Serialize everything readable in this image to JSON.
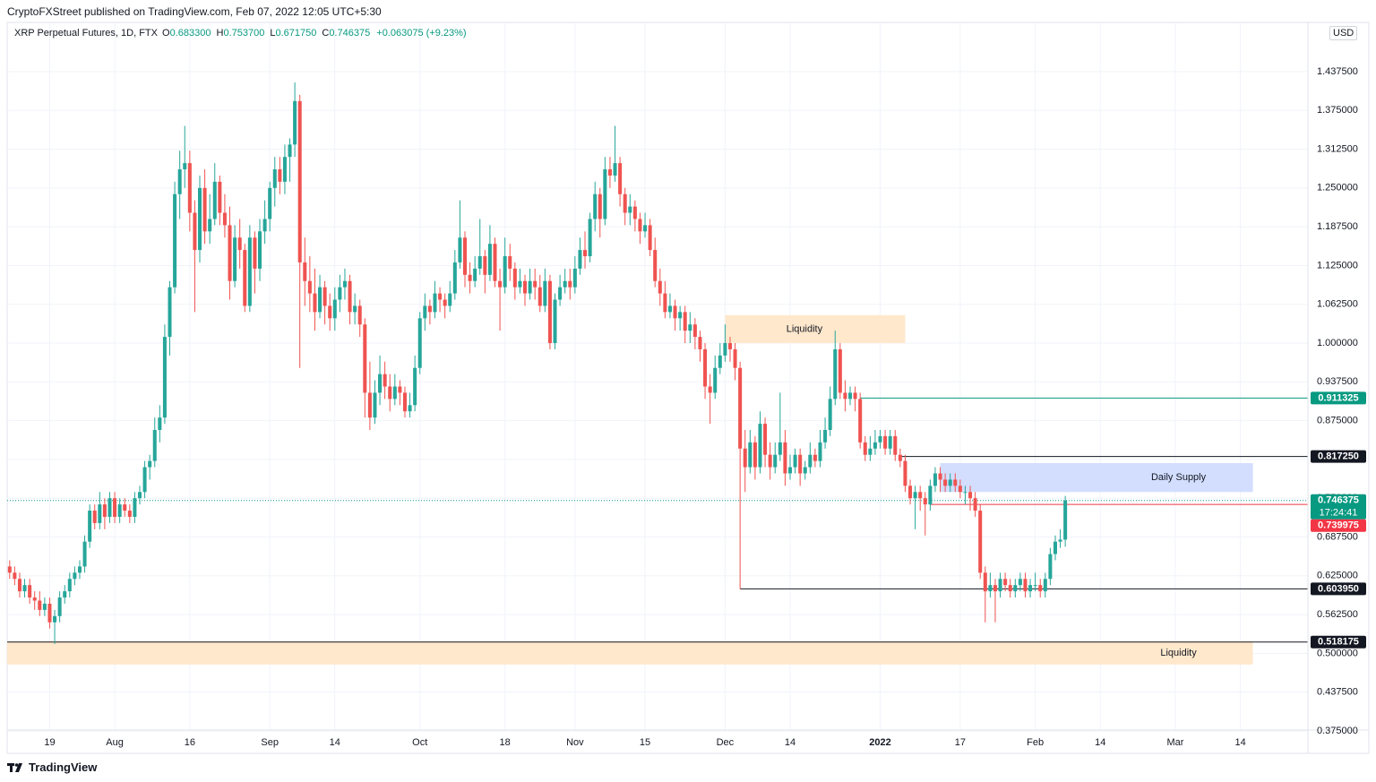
{
  "publish_line": "CryptoFXStreet published on TradingView.com, Feb 07, 2022 12:05 UTC+5:30",
  "header": {
    "symbol": "XRP Perpetual Futures, 1D, FTX",
    "fields": [
      {
        "key": "O",
        "value": "0.683300"
      },
      {
        "key": "H",
        "value": "0.753700"
      },
      {
        "key": "L",
        "value": "0.671750"
      },
      {
        "key": "C",
        "value": "0.746375"
      }
    ],
    "change": "+0.063075 (+9.23%)"
  },
  "currency": "USD",
  "brand": "TradingView",
  "chart_data": {
    "type": "candlestick",
    "up_color": "#26a69a",
    "down_color": "#ef5350",
    "grid": true,
    "xlim": [
      -0.5,
      259.5
    ],
    "xticks": [
      {
        "value": 8,
        "label": "19"
      },
      {
        "value": 21,
        "label": "Aug"
      },
      {
        "value": 36,
        "label": "16"
      },
      {
        "value": 52,
        "label": "Sep"
      },
      {
        "value": 65,
        "label": "14"
      },
      {
        "value": 82,
        "label": "Oct"
      },
      {
        "value": 99,
        "label": "18"
      },
      {
        "value": 113,
        "label": "Nov"
      },
      {
        "value": 127,
        "label": "15"
      },
      {
        "value": 143,
        "label": "Dec"
      },
      {
        "value": 156,
        "label": "14"
      },
      {
        "value": 174,
        "label": "2022"
      },
      {
        "value": 190,
        "label": "17"
      },
      {
        "value": 205,
        "label": "Feb"
      },
      {
        "value": 218,
        "label": "14"
      },
      {
        "value": 233,
        "label": "Mar"
      },
      {
        "value": 246,
        "label": "14"
      }
    ],
    "ylim": [
      0.3764,
      1.5168
    ],
    "yticks": [
      {
        "value": 0.375,
        "label": "0.375000"
      },
      {
        "value": 0.4375,
        "label": "0.437500"
      },
      {
        "value": 0.5,
        "label": "0.500000"
      },
      {
        "value": 0.5625,
        "label": "0.562500"
      },
      {
        "value": 0.625,
        "label": "0.625000"
      },
      {
        "value": 0.6875,
        "label": "0.687500"
      },
      {
        "value": 0.75,
        "label": "0.750000"
      },
      {
        "value": 0.8125,
        "label": "0.812500"
      },
      {
        "value": 0.875,
        "label": "0.875000"
      },
      {
        "value": 0.9375,
        "label": "0.937500"
      },
      {
        "value": 1.0,
        "label": "1.000000"
      },
      {
        "value": 1.0625,
        "label": "1.062500"
      },
      {
        "value": 1.125,
        "label": "1.125000"
      },
      {
        "value": 1.1875,
        "label": "1.187500"
      },
      {
        "value": 1.25,
        "label": "1.250000"
      },
      {
        "value": 1.3125,
        "label": "1.312500"
      },
      {
        "value": 1.375,
        "label": "1.375000"
      },
      {
        "value": 1.4375,
        "label": "1.437500"
      }
    ],
    "zones": [
      {
        "label": "Liquidity",
        "top": 1.045,
        "bottom": 1.0,
        "start": 143,
        "end": 179,
        "color": "#ffe8cc"
      },
      {
        "label": "Daily Supply",
        "top": 0.8066,
        "bottom": 0.76,
        "start": 186,
        "end": 248.5,
        "color": "#d3deff"
      },
      {
        "label": "Liquidity",
        "top": 0.5195,
        "bottom": 0.482,
        "start": -0.5,
        "end": 248.5,
        "color": "#ffe8cc"
      }
    ],
    "levels": [
      {
        "value": 0.911325,
        "label": "0.911325",
        "color": "#089981",
        "start": 170
      },
      {
        "value": 0.81725,
        "label": "0.817250",
        "color": "#131722",
        "start": 178
      },
      {
        "value": 0.739975,
        "label": "0.739975",
        "color": "#f23645",
        "start": 184
      },
      {
        "value": 0.60395,
        "label": "0.603950",
        "color": "#131722",
        "start": 146
      },
      {
        "value": 0.518175,
        "label": "0.518175",
        "color": "#131722",
        "start": -0.5
      }
    ],
    "last": {
      "value": 0.746375,
      "label": "0.746375",
      "countdown": "17:24:41",
      "color": "#089981"
    },
    "candles": [
      [
        0.64,
        0.65,
        0.62,
        0.63
      ],
      [
        0.63,
        0.64,
        0.61,
        0.62
      ],
      [
        0.62,
        0.63,
        0.59,
        0.6
      ],
      [
        0.6,
        0.62,
        0.59,
        0.61
      ],
      [
        0.61,
        0.62,
        0.58,
        0.59
      ],
      [
        0.59,
        0.6,
        0.57,
        0.585
      ],
      [
        0.585,
        0.6,
        0.56,
        0.57
      ],
      [
        0.57,
        0.59,
        0.56,
        0.58
      ],
      [
        0.58,
        0.59,
        0.54,
        0.55
      ],
      [
        0.55,
        0.57,
        0.515,
        0.56
      ],
      [
        0.56,
        0.6,
        0.55,
        0.59
      ],
      [
        0.59,
        0.61,
        0.58,
        0.6
      ],
      [
        0.6,
        0.63,
        0.59,
        0.62
      ],
      [
        0.62,
        0.64,
        0.61,
        0.63
      ],
      [
        0.63,
        0.65,
        0.62,
        0.64
      ],
      [
        0.64,
        0.69,
        0.63,
        0.68
      ],
      [
        0.68,
        0.74,
        0.67,
        0.73
      ],
      [
        0.73,
        0.74,
        0.7,
        0.71
      ],
      [
        0.71,
        0.76,
        0.7,
        0.74
      ],
      [
        0.74,
        0.75,
        0.7,
        0.72
      ],
      [
        0.72,
        0.76,
        0.71,
        0.75
      ],
      [
        0.75,
        0.76,
        0.71,
        0.72
      ],
      [
        0.72,
        0.75,
        0.71,
        0.74
      ],
      [
        0.74,
        0.75,
        0.72,
        0.73
      ],
      [
        0.73,
        0.74,
        0.71,
        0.72
      ],
      [
        0.72,
        0.76,
        0.71,
        0.75
      ],
      [
        0.75,
        0.77,
        0.74,
        0.76
      ],
      [
        0.76,
        0.81,
        0.75,
        0.8
      ],
      [
        0.8,
        0.82,
        0.78,
        0.81
      ],
      [
        0.81,
        0.88,
        0.8,
        0.86
      ],
      [
        0.86,
        0.9,
        0.84,
        0.88
      ],
      [
        0.88,
        1.03,
        0.87,
        1.01
      ],
      [
        1.01,
        1.1,
        0.98,
        1.09
      ],
      [
        1.09,
        1.26,
        1.08,
        1.24
      ],
      [
        1.24,
        1.31,
        1.2,
        1.28
      ],
      [
        1.28,
        1.35,
        1.25,
        1.29
      ],
      [
        1.29,
        1.31,
        1.18,
        1.21
      ],
      [
        1.21,
        1.23,
        1.05,
        1.15
      ],
      [
        1.15,
        1.27,
        1.13,
        1.25
      ],
      [
        1.25,
        1.28,
        1.16,
        1.18
      ],
      [
        1.18,
        1.24,
        1.16,
        1.2
      ],
      [
        1.2,
        1.29,
        1.19,
        1.26
      ],
      [
        1.26,
        1.27,
        1.19,
        1.21
      ],
      [
        1.21,
        1.24,
        1.17,
        1.19
      ],
      [
        1.19,
        1.22,
        1.07,
        1.1
      ],
      [
        1.1,
        1.19,
        1.09,
        1.17
      ],
      [
        1.17,
        1.2,
        1.12,
        1.15
      ],
      [
        1.15,
        1.16,
        1.05,
        1.06
      ],
      [
        1.06,
        1.19,
        1.05,
        1.17
      ],
      [
        1.17,
        1.18,
        1.08,
        1.12
      ],
      [
        1.12,
        1.2,
        1.1,
        1.18
      ],
      [
        1.18,
        1.23,
        1.16,
        1.2
      ],
      [
        1.2,
        1.26,
        1.18,
        1.25
      ],
      [
        1.25,
        1.3,
        1.22,
        1.28
      ],
      [
        1.28,
        1.3,
        1.24,
        1.26
      ],
      [
        1.26,
        1.32,
        1.24,
        1.3
      ],
      [
        1.3,
        1.33,
        1.26,
        1.32
      ],
      [
        1.32,
        1.42,
        1.3,
        1.39
      ],
      [
        1.39,
        1.4,
        0.96,
        1.13
      ],
      [
        1.13,
        1.17,
        1.06,
        1.1
      ],
      [
        1.1,
        1.14,
        1.05,
        1.08
      ],
      [
        1.08,
        1.12,
        1.02,
        1.05
      ],
      [
        1.05,
        1.11,
        1.04,
        1.09
      ],
      [
        1.09,
        1.1,
        1.03,
        1.06
      ],
      [
        1.06,
        1.08,
        1.02,
        1.04
      ],
      [
        1.04,
        1.09,
        1.02,
        1.07
      ],
      [
        1.07,
        1.11,
        1.05,
        1.09
      ],
      [
        1.09,
        1.12,
        1.07,
        1.1
      ],
      [
        1.1,
        1.11,
        1.03,
        1.05
      ],
      [
        1.05,
        1.08,
        1.03,
        1.06
      ],
      [
        1.06,
        1.07,
        1.01,
        1.03
      ],
      [
        1.03,
        1.04,
        0.88,
        0.92
      ],
      [
        0.92,
        0.97,
        0.86,
        0.88
      ],
      [
        0.88,
        0.94,
        0.87,
        0.92
      ],
      [
        0.92,
        0.98,
        0.9,
        0.95
      ],
      [
        0.95,
        0.97,
        0.91,
        0.93
      ],
      [
        0.93,
        0.95,
        0.89,
        0.91
      ],
      [
        0.91,
        0.95,
        0.9,
        0.93
      ],
      [
        0.93,
        0.94,
        0.9,
        0.92
      ],
      [
        0.92,
        0.93,
        0.88,
        0.89
      ],
      [
        0.89,
        0.92,
        0.88,
        0.9
      ],
      [
        0.9,
        0.98,
        0.89,
        0.96
      ],
      [
        0.96,
        1.05,
        0.95,
        1.04
      ],
      [
        1.04,
        1.08,
        1.02,
        1.06
      ],
      [
        1.06,
        1.07,
        1.03,
        1.05
      ],
      [
        1.05,
        1.1,
        1.04,
        1.08
      ],
      [
        1.08,
        1.09,
        1.05,
        1.07
      ],
      [
        1.07,
        1.08,
        1.04,
        1.06
      ],
      [
        1.06,
        1.1,
        1.05,
        1.08
      ],
      [
        1.08,
        1.15,
        1.07,
        1.13
      ],
      [
        1.13,
        1.23,
        1.12,
        1.17
      ],
      [
        1.17,
        1.18,
        1.09,
        1.11
      ],
      [
        1.11,
        1.13,
        1.08,
        1.1
      ],
      [
        1.1,
        1.14,
        1.09,
        1.12
      ],
      [
        1.12,
        1.2,
        1.11,
        1.14
      ],
      [
        1.14,
        1.15,
        1.08,
        1.11
      ],
      [
        1.11,
        1.19,
        1.1,
        1.16
      ],
      [
        1.16,
        1.17,
        1.09,
        1.1
      ],
      [
        1.1,
        1.12,
        1.02,
        1.09
      ],
      [
        1.09,
        1.17,
        1.08,
        1.14
      ],
      [
        1.14,
        1.16,
        1.1,
        1.12
      ],
      [
        1.12,
        1.13,
        1.07,
        1.09
      ],
      [
        1.09,
        1.12,
        1.08,
        1.1
      ],
      [
        1.1,
        1.11,
        1.06,
        1.08
      ],
      [
        1.08,
        1.12,
        1.07,
        1.1
      ],
      [
        1.1,
        1.12,
        1.07,
        1.09
      ],
      [
        1.09,
        1.11,
        1.05,
        1.06
      ],
      [
        1.06,
        1.12,
        1.05,
        1.1
      ],
      [
        1.1,
        1.11,
        0.99,
        1.0
      ],
      [
        1.0,
        1.08,
        0.99,
        1.07
      ],
      [
        1.07,
        1.11,
        1.06,
        1.09
      ],
      [
        1.09,
        1.12,
        1.08,
        1.1
      ],
      [
        1.1,
        1.12,
        1.07,
        1.09
      ],
      [
        1.09,
        1.14,
        1.08,
        1.12
      ],
      [
        1.12,
        1.17,
        1.11,
        1.15
      ],
      [
        1.15,
        1.18,
        1.12,
        1.14
      ],
      [
        1.14,
        1.21,
        1.13,
        1.2
      ],
      [
        1.2,
        1.26,
        1.18,
        1.24
      ],
      [
        1.24,
        1.25,
        1.17,
        1.2
      ],
      [
        1.2,
        1.3,
        1.19,
        1.28
      ],
      [
        1.28,
        1.3,
        1.25,
        1.27
      ],
      [
        1.27,
        1.35,
        1.26,
        1.29
      ],
      [
        1.29,
        1.3,
        1.22,
        1.24
      ],
      [
        1.24,
        1.25,
        1.19,
        1.21
      ],
      [
        1.21,
        1.24,
        1.19,
        1.22
      ],
      [
        1.22,
        1.23,
        1.18,
        1.2
      ],
      [
        1.2,
        1.21,
        1.16,
        1.18
      ],
      [
        1.18,
        1.21,
        1.17,
        1.19
      ],
      [
        1.19,
        1.2,
        1.14,
        1.15
      ],
      [
        1.15,
        1.17,
        1.09,
        1.1
      ],
      [
        1.1,
        1.12,
        1.06,
        1.08
      ],
      [
        1.08,
        1.1,
        1.04,
        1.05
      ],
      [
        1.05,
        1.08,
        1.04,
        1.06
      ],
      [
        1.06,
        1.07,
        1.02,
        1.04
      ],
      [
        1.04,
        1.06,
        1.02,
        1.05
      ],
      [
        1.05,
        1.06,
        1.0,
        1.02
      ],
      [
        1.02,
        1.05,
        1.0,
        1.03
      ],
      [
        1.03,
        1.04,
        0.99,
        1.01
      ],
      [
        1.01,
        1.02,
        0.97,
        0.99
      ],
      [
        0.99,
        1.0,
        0.91,
        0.93
      ],
      [
        0.93,
        0.95,
        0.87,
        0.92
      ],
      [
        0.92,
        0.98,
        0.91,
        0.96
      ],
      [
        0.96,
        1.0,
        0.95,
        0.98
      ],
      [
        0.98,
        1.03,
        0.97,
        1.0
      ],
      [
        1.0,
        1.01,
        0.97,
        0.99
      ],
      [
        0.99,
        1.0,
        0.94,
        0.96
      ],
      [
        0.96,
        0.97,
        0.604,
        0.83
      ],
      [
        0.83,
        0.86,
        0.76,
        0.8
      ],
      [
        0.8,
        0.86,
        0.79,
        0.84
      ],
      [
        0.84,
        0.85,
        0.78,
        0.8
      ],
      [
        0.8,
        0.89,
        0.79,
        0.87
      ],
      [
        0.87,
        0.88,
        0.8,
        0.82
      ],
      [
        0.82,
        0.84,
        0.78,
        0.8
      ],
      [
        0.8,
        0.84,
        0.79,
        0.82
      ],
      [
        0.82,
        0.92,
        0.81,
        0.84
      ],
      [
        0.84,
        0.86,
        0.77,
        0.79
      ],
      [
        0.79,
        0.82,
        0.78,
        0.8
      ],
      [
        0.8,
        0.83,
        0.79,
        0.82
      ],
      [
        0.82,
        0.83,
        0.77,
        0.79
      ],
      [
        0.79,
        0.81,
        0.78,
        0.8
      ],
      [
        0.8,
        0.84,
        0.79,
        0.82
      ],
      [
        0.82,
        0.83,
        0.8,
        0.81
      ],
      [
        0.81,
        0.86,
        0.8,
        0.84
      ],
      [
        0.84,
        0.88,
        0.83,
        0.86
      ],
      [
        0.86,
        0.93,
        0.85,
        0.91
      ],
      [
        0.91,
        1.02,
        0.9,
        0.99
      ],
      [
        0.99,
        1.0,
        0.91,
        0.92
      ],
      [
        0.92,
        0.94,
        0.89,
        0.91
      ],
      [
        0.91,
        0.93,
        0.9,
        0.92
      ],
      [
        0.92,
        0.93,
        0.89,
        0.91
      ],
      [
        0.91,
        0.92,
        0.83,
        0.84
      ],
      [
        0.84,
        0.85,
        0.81,
        0.82
      ],
      [
        0.82,
        0.85,
        0.81,
        0.83
      ],
      [
        0.83,
        0.86,
        0.82,
        0.84
      ],
      [
        0.84,
        0.86,
        0.83,
        0.85
      ],
      [
        0.85,
        0.86,
        0.82,
        0.83
      ],
      [
        0.83,
        0.86,
        0.82,
        0.85
      ],
      [
        0.85,
        0.86,
        0.81,
        0.82
      ],
      [
        0.82,
        0.83,
        0.8,
        0.81
      ],
      [
        0.81,
        0.82,
        0.76,
        0.77
      ],
      [
        0.77,
        0.78,
        0.74,
        0.75
      ],
      [
        0.75,
        0.77,
        0.7,
        0.76
      ],
      [
        0.76,
        0.77,
        0.73,
        0.75
      ],
      [
        0.75,
        0.76,
        0.69,
        0.74
      ],
      [
        0.74,
        0.78,
        0.73,
        0.77
      ],
      [
        0.77,
        0.8,
        0.76,
        0.79
      ],
      [
        0.79,
        0.8,
        0.76,
        0.78
      ],
      [
        0.78,
        0.79,
        0.76,
        0.77
      ],
      [
        0.77,
        0.79,
        0.76,
        0.78
      ],
      [
        0.78,
        0.79,
        0.76,
        0.77
      ],
      [
        0.77,
        0.78,
        0.75,
        0.76
      ],
      [
        0.76,
        0.77,
        0.74,
        0.76
      ],
      [
        0.76,
        0.77,
        0.73,
        0.75
      ],
      [
        0.75,
        0.76,
        0.72,
        0.73
      ],
      [
        0.73,
        0.74,
        0.62,
        0.63
      ],
      [
        0.63,
        0.64,
        0.55,
        0.6
      ],
      [
        0.6,
        0.63,
        0.59,
        0.61
      ],
      [
        0.61,
        0.62,
        0.55,
        0.6
      ],
      [
        0.6,
        0.63,
        0.59,
        0.62
      ],
      [
        0.62,
        0.63,
        0.6,
        0.61
      ],
      [
        0.61,
        0.62,
        0.59,
        0.6
      ],
      [
        0.6,
        0.62,
        0.59,
        0.61
      ],
      [
        0.61,
        0.63,
        0.6,
        0.62
      ],
      [
        0.62,
        0.63,
        0.59,
        0.6
      ],
      [
        0.6,
        0.62,
        0.59,
        0.61
      ],
      [
        0.61,
        0.63,
        0.6,
        0.61
      ],
      [
        0.61,
        0.62,
        0.59,
        0.6
      ],
      [
        0.6,
        0.63,
        0.59,
        0.62
      ],
      [
        0.62,
        0.67,
        0.61,
        0.66
      ],
      [
        0.66,
        0.69,
        0.65,
        0.68
      ],
      [
        0.68,
        0.7,
        0.67,
        0.6833
      ],
      [
        0.6833,
        0.7537,
        0.67175,
        0.746375
      ]
    ]
  }
}
